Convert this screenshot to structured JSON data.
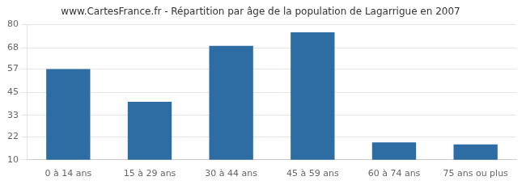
{
  "chart_data": {
    "type": "bar",
    "title": "www.CartesFrance.fr - Répartition par âge de la population de Lagarrigue en 2007",
    "categories": [
      "0 à 14 ans",
      "15 à 29 ans",
      "30 à 44 ans",
      "45 à 59 ans",
      "60 à 74 ans",
      "75 ans ou plus"
    ],
    "values": [
      57,
      40,
      69,
      76,
      19,
      18
    ],
    "color": "#2e6da4",
    "ylim": [
      10,
      80
    ],
    "yticks": [
      10,
      22,
      33,
      45,
      57,
      68,
      80
    ],
    "grid": true
  }
}
